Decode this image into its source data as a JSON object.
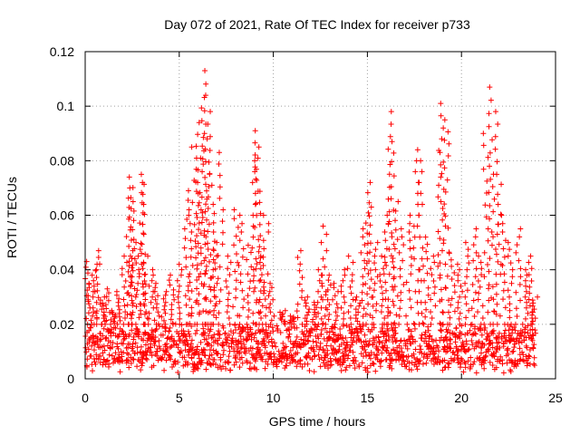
{
  "chart_data": {
    "type": "scatter",
    "title": "Day 072 of 2021, Rate Of TEC Index for receiver p733",
    "xlabel": "GPS time / hours",
    "ylabel": "ROTI / TECUs",
    "xlim": [
      0,
      25
    ],
    "ylim": [
      0,
      0.12
    ],
    "x_ticks": [
      "0",
      "5",
      "10",
      "15",
      "20",
      "25"
    ],
    "y_ticks": [
      "0",
      "0.02",
      "0.04",
      "0.06",
      "0.08",
      "0.1",
      "0.12"
    ],
    "grid": true,
    "marker": "+",
    "color": "#ff0000",
    "baseline_band": [
      0.005,
      0.02
    ],
    "series": [
      {
        "x": [
          0.1,
          0.3,
          0.5,
          0.7,
          0.9,
          1.2,
          1.5,
          1.8,
          2.1,
          2.3,
          2.4,
          2.5,
          2.6,
          2.8,
          3.0,
          3.1,
          3.2,
          3.5,
          3.8,
          4.2,
          4.6,
          5.0,
          5.4,
          5.6,
          5.8,
          6.0,
          6.1,
          6.3,
          6.4,
          6.5,
          6.6,
          6.8,
          6.9,
          7.2,
          7.6,
          8.0,
          8.3,
          8.7,
          9.0,
          9.1,
          9.2,
          9.4,
          9.6,
          9.9,
          10.5,
          11.0,
          11.4,
          11.8,
          12.2,
          12.5,
          12.7,
          12.9,
          13.3,
          13.7,
          14.1,
          14.5,
          14.8,
          15.0,
          15.2,
          15.4,
          15.8,
          16.0,
          16.2,
          16.3,
          16.5,
          16.8,
          17.2,
          17.6,
          17.8,
          18.1,
          18.5,
          18.9,
          19.0,
          19.2,
          19.5,
          19.9,
          20.3,
          20.7,
          21.0,
          21.3,
          21.6,
          21.8,
          22.0,
          22.2,
          22.6,
          23.0,
          23.4,
          23.7,
          23.9
        ],
        "y": [
          0.043,
          0.035,
          0.042,
          0.047,
          0.03,
          0.033,
          0.025,
          0.032,
          0.045,
          0.07,
          0.074,
          0.065,
          0.044,
          0.05,
          0.072,
          0.075,
          0.045,
          0.04,
          0.035,
          0.032,
          0.038,
          0.042,
          0.069,
          0.06,
          0.085,
          0.094,
          0.072,
          0.104,
          0.113,
          0.098,
          0.088,
          0.064,
          0.05,
          0.083,
          0.045,
          0.062,
          0.06,
          0.049,
          0.08,
          0.091,
          0.085,
          0.045,
          0.06,
          0.035,
          0.025,
          0.023,
          0.047,
          0.03,
          0.028,
          0.04,
          0.056,
          0.038,
          0.035,
          0.04,
          0.045,
          0.03,
          0.055,
          0.072,
          0.063,
          0.05,
          0.045,
          0.06,
          0.098,
          0.087,
          0.065,
          0.055,
          0.06,
          0.08,
          0.084,
          0.052,
          0.045,
          0.088,
          0.101,
          0.095,
          0.046,
          0.042,
          0.05,
          0.055,
          0.045,
          0.09,
          0.107,
          0.098,
          0.075,
          0.06,
          0.05,
          0.055,
          0.04,
          0.045,
          0.03
        ]
      }
    ]
  }
}
